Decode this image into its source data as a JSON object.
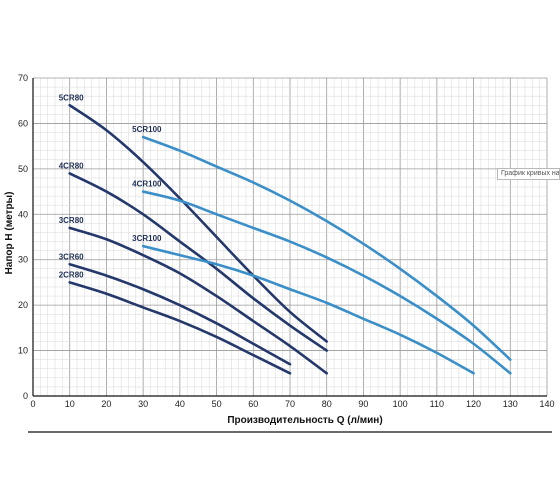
{
  "tooltip": "График кривых насосов",
  "colors": {
    "dark": "#24386b",
    "light": "#3b8fc9",
    "grid_minor": "#d8d8d8",
    "grid_major": "#9a9a9a",
    "axis": "#111111"
  },
  "chart_data": {
    "type": "line",
    "xlabel": "Производительность  Q (л/мин)",
    "ylabel": "Напор  H (метры)",
    "xlim": [
      0,
      140
    ],
    "ylim": [
      0,
      70
    ],
    "x_ticks": [
      0,
      10,
      20,
      30,
      40,
      50,
      60,
      70,
      80,
      90,
      100,
      110,
      120,
      130,
      140
    ],
    "y_ticks": [
      0,
      10,
      20,
      30,
      40,
      50,
      60,
      70
    ],
    "grid": true,
    "series": [
      {
        "name": "5CR80",
        "color": "dark",
        "x": [
          10,
          20,
          30,
          40,
          50,
          60,
          70,
          80
        ],
        "y": [
          64,
          58.5,
          51.5,
          43.5,
          35,
          26.5,
          18.5,
          12
        ]
      },
      {
        "name": "4CR80",
        "color": "dark",
        "x": [
          10,
          20,
          30,
          40,
          50,
          60,
          70,
          80
        ],
        "y": [
          49,
          45,
          40,
          34,
          28,
          21.5,
          15.5,
          10
        ]
      },
      {
        "name": "3CR80",
        "color": "dark",
        "x": [
          10,
          20,
          30,
          40,
          50,
          60,
          70,
          80
        ],
        "y": [
          37,
          34.5,
          31,
          27,
          22,
          16.5,
          11,
          5
        ]
      },
      {
        "name": "3CR60",
        "color": "dark",
        "x": [
          10,
          20,
          30,
          40,
          50,
          60,
          70
        ],
        "y": [
          29,
          26.5,
          23.5,
          20,
          16,
          11.5,
          7
        ]
      },
      {
        "name": "2CR80",
        "color": "dark",
        "x": [
          10,
          20,
          30,
          40,
          50,
          60,
          70
        ],
        "y": [
          25,
          22.5,
          19.5,
          16.5,
          13,
          9,
          5
        ]
      },
      {
        "name": "5CR100",
        "color": "light",
        "x": [
          30,
          40,
          50,
          60,
          70,
          80,
          90,
          100,
          110,
          120,
          130
        ],
        "y": [
          57,
          54,
          50.5,
          47,
          43,
          38.5,
          33.5,
          28,
          22,
          15.5,
          8
        ]
      },
      {
        "name": "4CR100",
        "color": "light",
        "x": [
          30,
          40,
          50,
          60,
          70,
          80,
          90,
          100,
          110,
          120,
          130
        ],
        "y": [
          45,
          43,
          40,
          37,
          34,
          30.5,
          26.5,
          22,
          17,
          11.5,
          5
        ]
      },
      {
        "name": "3CR100",
        "color": "light",
        "x": [
          30,
          40,
          50,
          60,
          70,
          80,
          90,
          100,
          110,
          120
        ],
        "y": [
          33,
          31,
          29,
          26.5,
          23.5,
          20.5,
          17,
          13.5,
          9.5,
          5
        ]
      }
    ]
  }
}
